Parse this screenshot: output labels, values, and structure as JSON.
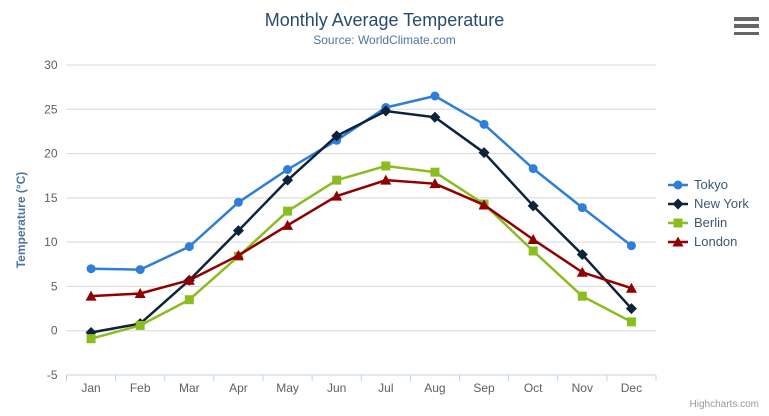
{
  "header": {
    "title": "Monthly Average Temperature",
    "subtitle": "Source: WorldClimate.com"
  },
  "credits": "Highcharts.com",
  "context_menu_icon": "hamburger-menu",
  "palette": {
    "title_color": "#274b6d",
    "subtitle_color": "#4d759e",
    "axis_label_color": "#606060",
    "axis_title_color": "#4d759e",
    "legend_text_color": "#3E576F",
    "grid_color": "#D8D8D8",
    "axis_line_color": "#C0D0E0",
    "credits_color": "#999999",
    "background": "#ffffff"
  },
  "chart_data": {
    "type": "line",
    "title": "Monthly Average Temperature",
    "subtitle": "Source: WorldClimate.com",
    "categories": [
      "Jan",
      "Feb",
      "Mar",
      "Apr",
      "May",
      "Jun",
      "Jul",
      "Aug",
      "Sep",
      "Oct",
      "Nov",
      "Dec"
    ],
    "xlabel": "",
    "ylabel": "Temperature (°C)",
    "ylim": [
      -5,
      30
    ],
    "yticks": [
      -5,
      0,
      5,
      10,
      15,
      20,
      25,
      30
    ],
    "grid": true,
    "legend_position": "right",
    "series": [
      {
        "name": "Tokyo",
        "color": "#2f7ed8",
        "marker": "circle",
        "values": [
          7.0,
          6.9,
          9.5,
          14.5,
          18.2,
          21.5,
          25.2,
          26.5,
          23.3,
          18.3,
          13.9,
          9.6
        ]
      },
      {
        "name": "New York",
        "color": "#0d233a",
        "marker": "diamond",
        "values": [
          -0.2,
          0.8,
          5.7,
          11.3,
          17.0,
          22.0,
          24.8,
          24.1,
          20.1,
          14.1,
          8.6,
          2.5
        ]
      },
      {
        "name": "Berlin",
        "color": "#8bbc21",
        "marker": "square",
        "values": [
          -0.9,
          0.6,
          3.5,
          8.4,
          13.5,
          17.0,
          18.6,
          17.9,
          14.3,
          9.0,
          3.9,
          1.0
        ]
      },
      {
        "name": "London",
        "color": "#910000",
        "marker": "triangle",
        "values": [
          3.9,
          4.2,
          5.7,
          8.5,
          11.9,
          15.2,
          17.0,
          16.6,
          14.2,
          10.3,
          6.6,
          4.8
        ]
      }
    ]
  }
}
